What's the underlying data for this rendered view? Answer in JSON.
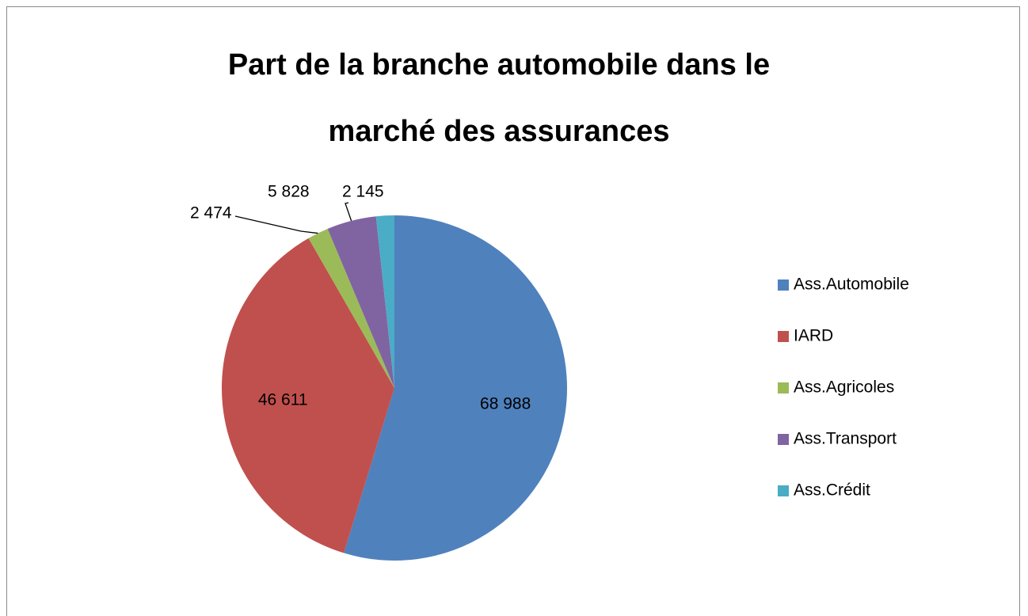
{
  "chart_data": {
    "type": "pie",
    "title": "Part de la branche automobile dans le marché des assurances",
    "categories": [
      "Ass.Automobile",
      "IARD",
      "Ass.Agricoles",
      "Ass.Transport",
      "Ass.Crédit"
    ],
    "values": [
      68988,
      46611,
      2474,
      5828,
      2145
    ],
    "value_labels": [
      "68 988",
      "46 611",
      "2 474",
      "5 828",
      "2 145"
    ],
    "colors": [
      "#4f81bd",
      "#c0504d",
      "#9bbb59",
      "#8064a2",
      "#4bacc6"
    ],
    "legend": "right"
  }
}
